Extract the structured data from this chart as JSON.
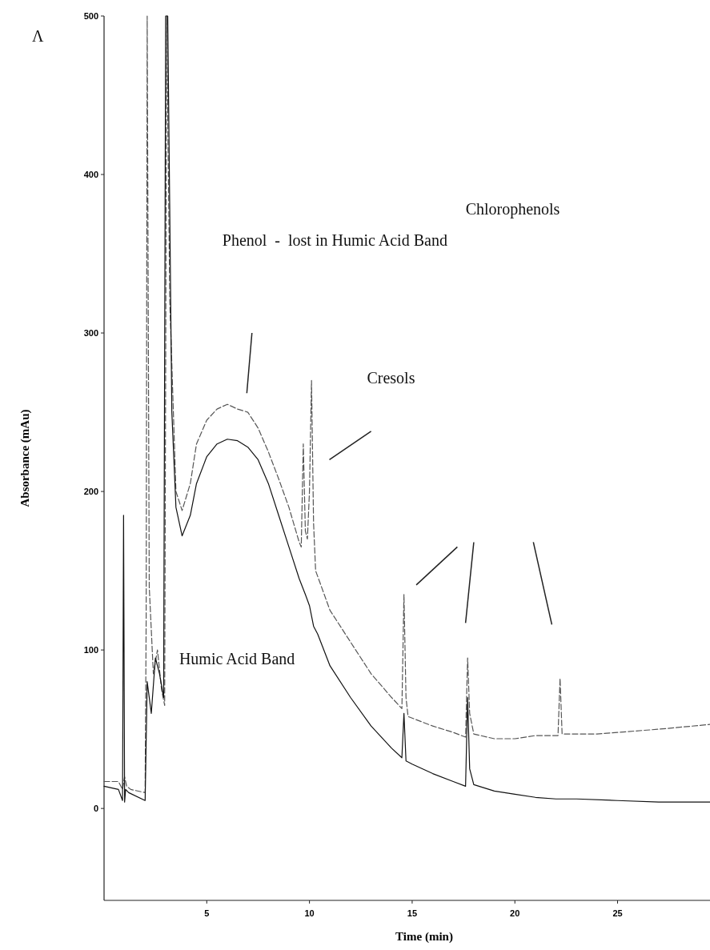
{
  "chart_data": {
    "type": "line",
    "xlabel": "Time (min)",
    "ylabel": "Absorbance (mAu)",
    "annotations": [
      "Phenol  -  lost in Humic Acid Band",
      "Cresols",
      "Chlorophenols",
      "Humic Acid Band",
      "Λ"
    ],
    "xlim": [
      0,
      29.5
    ],
    "ylim": [
      -58,
      500
    ],
    "xticks": [
      5,
      10,
      15,
      20,
      25
    ],
    "yticks": [
      0,
      100,
      200,
      300,
      400,
      500
    ],
    "grid": false,
    "series": [
      {
        "color": "#555555",
        "line_style": "dashed",
        "x": [
          0,
          0.7,
          0.9,
          1.0,
          1.1,
          1.3,
          2.0,
          2.05,
          2.1,
          2.2,
          2.4,
          2.6,
          2.8,
          2.95,
          3.05,
          3.2,
          3.5,
          3.8,
          4.2,
          4.5,
          5,
          5.5,
          6,
          6.5,
          7,
          7.5,
          8,
          8.5,
          9,
          9.5,
          9.6,
          9.7,
          9.8,
          9.9,
          10.0,
          10.1,
          10.2,
          10.3,
          11,
          12,
          13,
          14,
          14.5,
          14.6,
          14.7,
          14.8,
          16,
          17,
          17.6,
          17.7,
          17.8,
          18,
          19,
          20,
          21,
          22.1,
          22.2,
          22.3,
          24,
          25,
          27,
          29.5
        ],
        "values": [
          17,
          17,
          12,
          20,
          14,
          12,
          10,
          120,
          500,
          140,
          85,
          100,
          75,
          65,
          500,
          320,
          200,
          188,
          205,
          230,
          245,
          252,
          255,
          252,
          250,
          240,
          225,
          208,
          190,
          168,
          165,
          230,
          175,
          170,
          200,
          270,
          180,
          150,
          125,
          105,
          85,
          70,
          63,
          135,
          70,
          58,
          52,
          48,
          45,
          95,
          60,
          47,
          44,
          44,
          46,
          46,
          82,
          47,
          47,
          48,
          50,
          53
        ]
      },
      {
        "color": "#111111",
        "line_style": "solid",
        "x": [
          0,
          0.7,
          0.9,
          0.95,
          1.0,
          1.05,
          1.2,
          2.0,
          2.1,
          2.3,
          2.5,
          2.7,
          2.9,
          3.0,
          3.1,
          3.3,
          3.5,
          3.8,
          4.2,
          4.5,
          5,
          5.5,
          6,
          6.5,
          7,
          7.5,
          8,
          8.5,
          9,
          9.5,
          9.8,
          10.0,
          10.2,
          10.4,
          11,
          12,
          13,
          14,
          14.5,
          14.6,
          14.7,
          15,
          16,
          17,
          17.6,
          17.7,
          17.8,
          18,
          19,
          20,
          21,
          22,
          23,
          25,
          27,
          29.5
        ],
        "values": [
          14,
          12,
          5,
          185,
          4,
          12,
          10,
          5,
          80,
          60,
          95,
          85,
          70,
          500,
          500,
          250,
          190,
          172,
          185,
          205,
          222,
          230,
          233,
          232,
          228,
          220,
          205,
          185,
          165,
          145,
          135,
          128,
          115,
          110,
          90,
          70,
          52,
          38,
          32,
          60,
          30,
          28,
          22,
          17,
          14,
          70,
          25,
          15,
          11,
          9,
          7,
          6,
          6,
          5,
          4,
          4
        ]
      }
    ]
  }
}
